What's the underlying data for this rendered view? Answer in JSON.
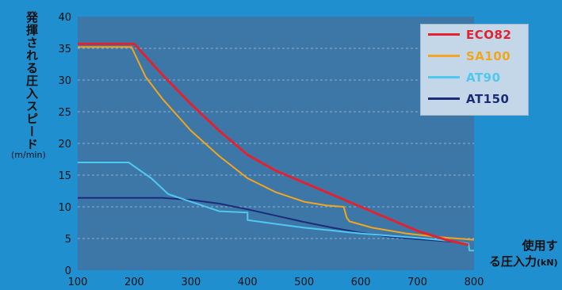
{
  "chart_data": {
    "type": "line",
    "ylabel": "発揮される圧入スピード",
    "yunit": "(m/min)",
    "xlabel": "使用する圧入力",
    "xunit": "(kN)",
    "xlim": [
      100,
      800
    ],
    "ylim": [
      0,
      40
    ],
    "xticks": [
      100,
      200,
      300,
      400,
      500,
      600,
      700,
      800
    ],
    "yticks": [
      0,
      5,
      10,
      15,
      20,
      25,
      30,
      35,
      40
    ],
    "grid": "horizontal-dashed",
    "legend_position": "top-right",
    "series": [
      {
        "name": "ECO82",
        "color": "#e2222e",
        "x": [
          100,
          200,
          250,
          300,
          350,
          400,
          450,
          500,
          550,
          600,
          650,
          700,
          750,
          790
        ],
        "y": [
          35.7,
          35.7,
          30.8,
          26.2,
          22.0,
          18.2,
          15.7,
          13.8,
          11.9,
          10.0,
          8.1,
          6.2,
          4.8,
          4.0
        ]
      },
      {
        "name": "SA100",
        "color": "#f2a51d",
        "x": [
          100,
          195,
          220,
          250,
          300,
          350,
          400,
          450,
          500,
          540,
          570,
          575,
          580,
          620,
          680,
          740,
          800
        ],
        "y": [
          35.2,
          35.2,
          30.5,
          27.0,
          22.0,
          18.0,
          14.5,
          12.3,
          10.8,
          10.2,
          10.0,
          8.3,
          7.7,
          6.7,
          5.8,
          5.2,
          4.8
        ]
      },
      {
        "name": "AT90",
        "color": "#4fc8f0",
        "x": [
          100,
          190,
          230,
          260,
          300,
          350,
          400,
          400,
          450,
          500,
          600,
          700,
          760,
          790,
          792,
          800
        ],
        "y": [
          17.0,
          17.0,
          14.5,
          12.0,
          10.8,
          9.3,
          9.1,
          7.9,
          7.3,
          6.7,
          5.8,
          5.1,
          4.6,
          4.2,
          3.1,
          3.1
        ]
      },
      {
        "name": "AT150",
        "color": "#1a2c79",
        "x": [
          100,
          150,
          250,
          300,
          350,
          400,
          450,
          500,
          550,
          600,
          650,
          700,
          760,
          790
        ],
        "y": [
          11.4,
          11.4,
          11.4,
          11.1,
          10.5,
          9.6,
          8.6,
          7.6,
          6.7,
          5.9,
          5.3,
          4.9,
          4.5,
          4.2
        ]
      }
    ]
  }
}
